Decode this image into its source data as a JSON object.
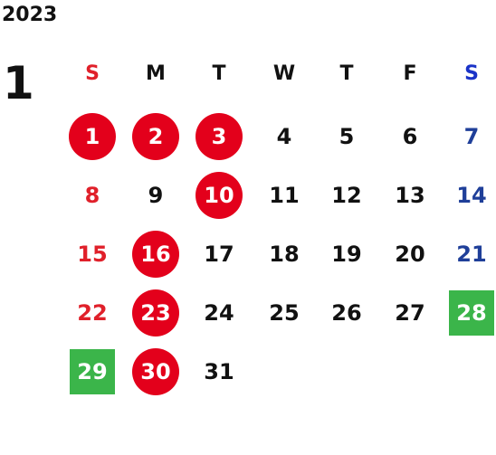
{
  "year": "2023",
  "month": "1",
  "weekdays": [
    {
      "label": "S",
      "style": "red"
    },
    {
      "label": "M",
      "style": ""
    },
    {
      "label": "T",
      "style": ""
    },
    {
      "label": "W",
      "style": ""
    },
    {
      "label": "T",
      "style": ""
    },
    {
      "label": "F",
      "style": ""
    },
    {
      "label": "S",
      "style": "bluehdr"
    }
  ],
  "weeks": [
    [
      {
        "day": "1",
        "style": "circle"
      },
      {
        "day": "2",
        "style": "circle"
      },
      {
        "day": "3",
        "style": "circle"
      },
      {
        "day": "4",
        "style": ""
      },
      {
        "day": "5",
        "style": ""
      },
      {
        "day": "6",
        "style": ""
      },
      {
        "day": "7",
        "style": "blue"
      }
    ],
    [
      {
        "day": "8",
        "style": "red"
      },
      {
        "day": "9",
        "style": ""
      },
      {
        "day": "10",
        "style": "circle"
      },
      {
        "day": "11",
        "style": ""
      },
      {
        "day": "12",
        "style": ""
      },
      {
        "day": "13",
        "style": ""
      },
      {
        "day": "14",
        "style": "blue"
      }
    ],
    [
      {
        "day": "15",
        "style": "red"
      },
      {
        "day": "16",
        "style": "circle"
      },
      {
        "day": "17",
        "style": ""
      },
      {
        "day": "18",
        "style": ""
      },
      {
        "day": "19",
        "style": ""
      },
      {
        "day": "20",
        "style": ""
      },
      {
        "day": "21",
        "style": "blue"
      }
    ],
    [
      {
        "day": "22",
        "style": "red"
      },
      {
        "day": "23",
        "style": "circle"
      },
      {
        "day": "24",
        "style": ""
      },
      {
        "day": "25",
        "style": ""
      },
      {
        "day": "26",
        "style": ""
      },
      {
        "day": "27",
        "style": ""
      },
      {
        "day": "28",
        "style": "square"
      }
    ],
    [
      {
        "day": "29",
        "style": "square"
      },
      {
        "day": "30",
        "style": "circle"
      },
      {
        "day": "31",
        "style": ""
      }
    ]
  ],
  "colors": {
    "holiday_circle": "#e3001b",
    "special_square": "#3bb54a",
    "sunday_text": "#e0202a",
    "saturday_text": "#1f3f99"
  }
}
